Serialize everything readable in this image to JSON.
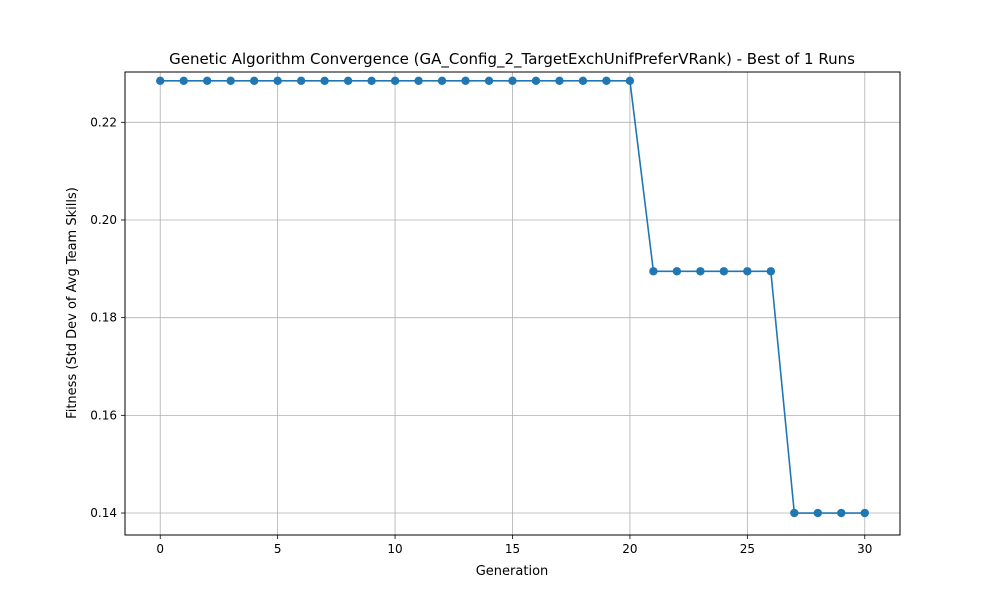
{
  "chart_data": {
    "type": "line",
    "title": "Genetic Algorithm Convergence (GA_Config_2_TargetExchUnifPreferVRank) - Best of 1 Runs",
    "xlabel": "Generation",
    "ylabel": "Fitness (Std Dev of Avg Team Skills)",
    "xlim": [
      -1.5,
      31.5
    ],
    "ylim": [
      0.1355,
      0.2303
    ],
    "xticks": [
      0,
      5,
      10,
      15,
      20,
      25,
      30
    ],
    "yticks": [
      0.14,
      0.16,
      0.18,
      0.2,
      0.22
    ],
    "ytick_labels": [
      "0.14",
      "0.16",
      "0.18",
      "0.20",
      "0.22"
    ],
    "grid": true,
    "marker": "circle",
    "series": [
      {
        "color": "#1f77b4",
        "x": [
          0,
          1,
          2,
          3,
          4,
          5,
          6,
          7,
          8,
          9,
          10,
          11,
          12,
          13,
          14,
          15,
          16,
          17,
          18,
          19,
          20,
          21,
          22,
          23,
          24,
          25,
          26,
          27,
          28,
          29,
          30
        ],
        "values": [
          0.2285,
          0.2285,
          0.2285,
          0.2285,
          0.2285,
          0.2285,
          0.2285,
          0.2285,
          0.2285,
          0.2285,
          0.2285,
          0.2285,
          0.2285,
          0.2285,
          0.2285,
          0.2285,
          0.2285,
          0.2285,
          0.2285,
          0.2285,
          0.2285,
          0.1895,
          0.1895,
          0.1895,
          0.1895,
          0.1895,
          0.1895,
          0.14,
          0.14,
          0.14,
          0.14
        ]
      }
    ]
  }
}
